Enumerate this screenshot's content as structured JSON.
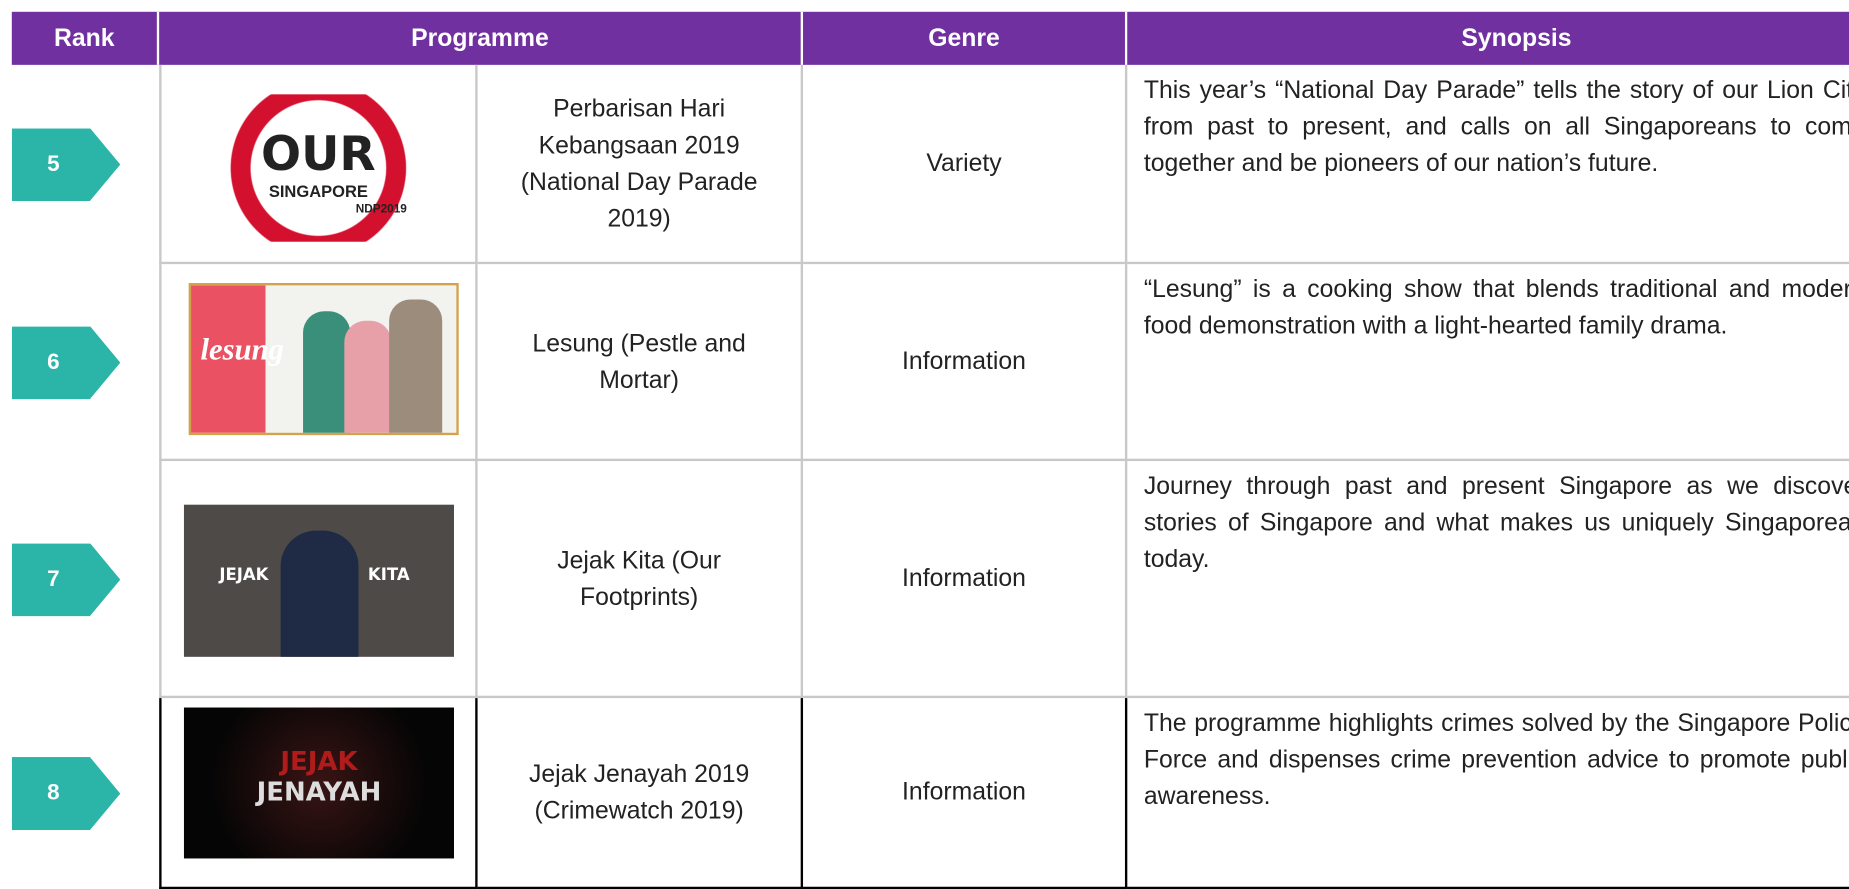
{
  "header": {
    "rank": "Rank",
    "programme": "Programme",
    "genre": "Genre",
    "synopsis": "Synopsis"
  },
  "rows": [
    {
      "rank": "5",
      "programme": "Perbarisan Hari Kebangsaan 2019 (National Day Parade 2019)",
      "genre": "Variety",
      "synopsis": "This year’s “National Day Parade” tells the story of our Lion City from past to present, and calls on all Singaporeans to come together and be pioneers of our nation’s future.",
      "image_text": [
        "OUR",
        "SINGAPORE",
        "NDP2019"
      ]
    },
    {
      "rank": "6",
      "programme": "Lesung (Pestle and Mortar)",
      "genre": "Information",
      "synopsis": "“Lesung” is a cooking show that blends traditional and modern food demonstration with a light-hearted family drama.",
      "image_text": [
        "lesung"
      ]
    },
    {
      "rank": "7",
      "programme": "Jejak Kita (Our Footprints)",
      "genre": "Information",
      "synopsis": "Journey through past and present Singapore as we discover stories of Singapore and what makes us uniquely Singaporean today.",
      "image_text": [
        "JEJAK",
        "KITA"
      ]
    },
    {
      "rank": "8",
      "programme": "Jejak Jenayah 2019 (Crimewatch 2019)",
      "genre": "Information",
      "synopsis": "The programme highlights crimes solved by the Singapore Police Force and dispenses crime prevention advice to promote public awareness.",
      "image_text": [
        "JEJAK",
        "JENAYAH"
      ]
    }
  ]
}
